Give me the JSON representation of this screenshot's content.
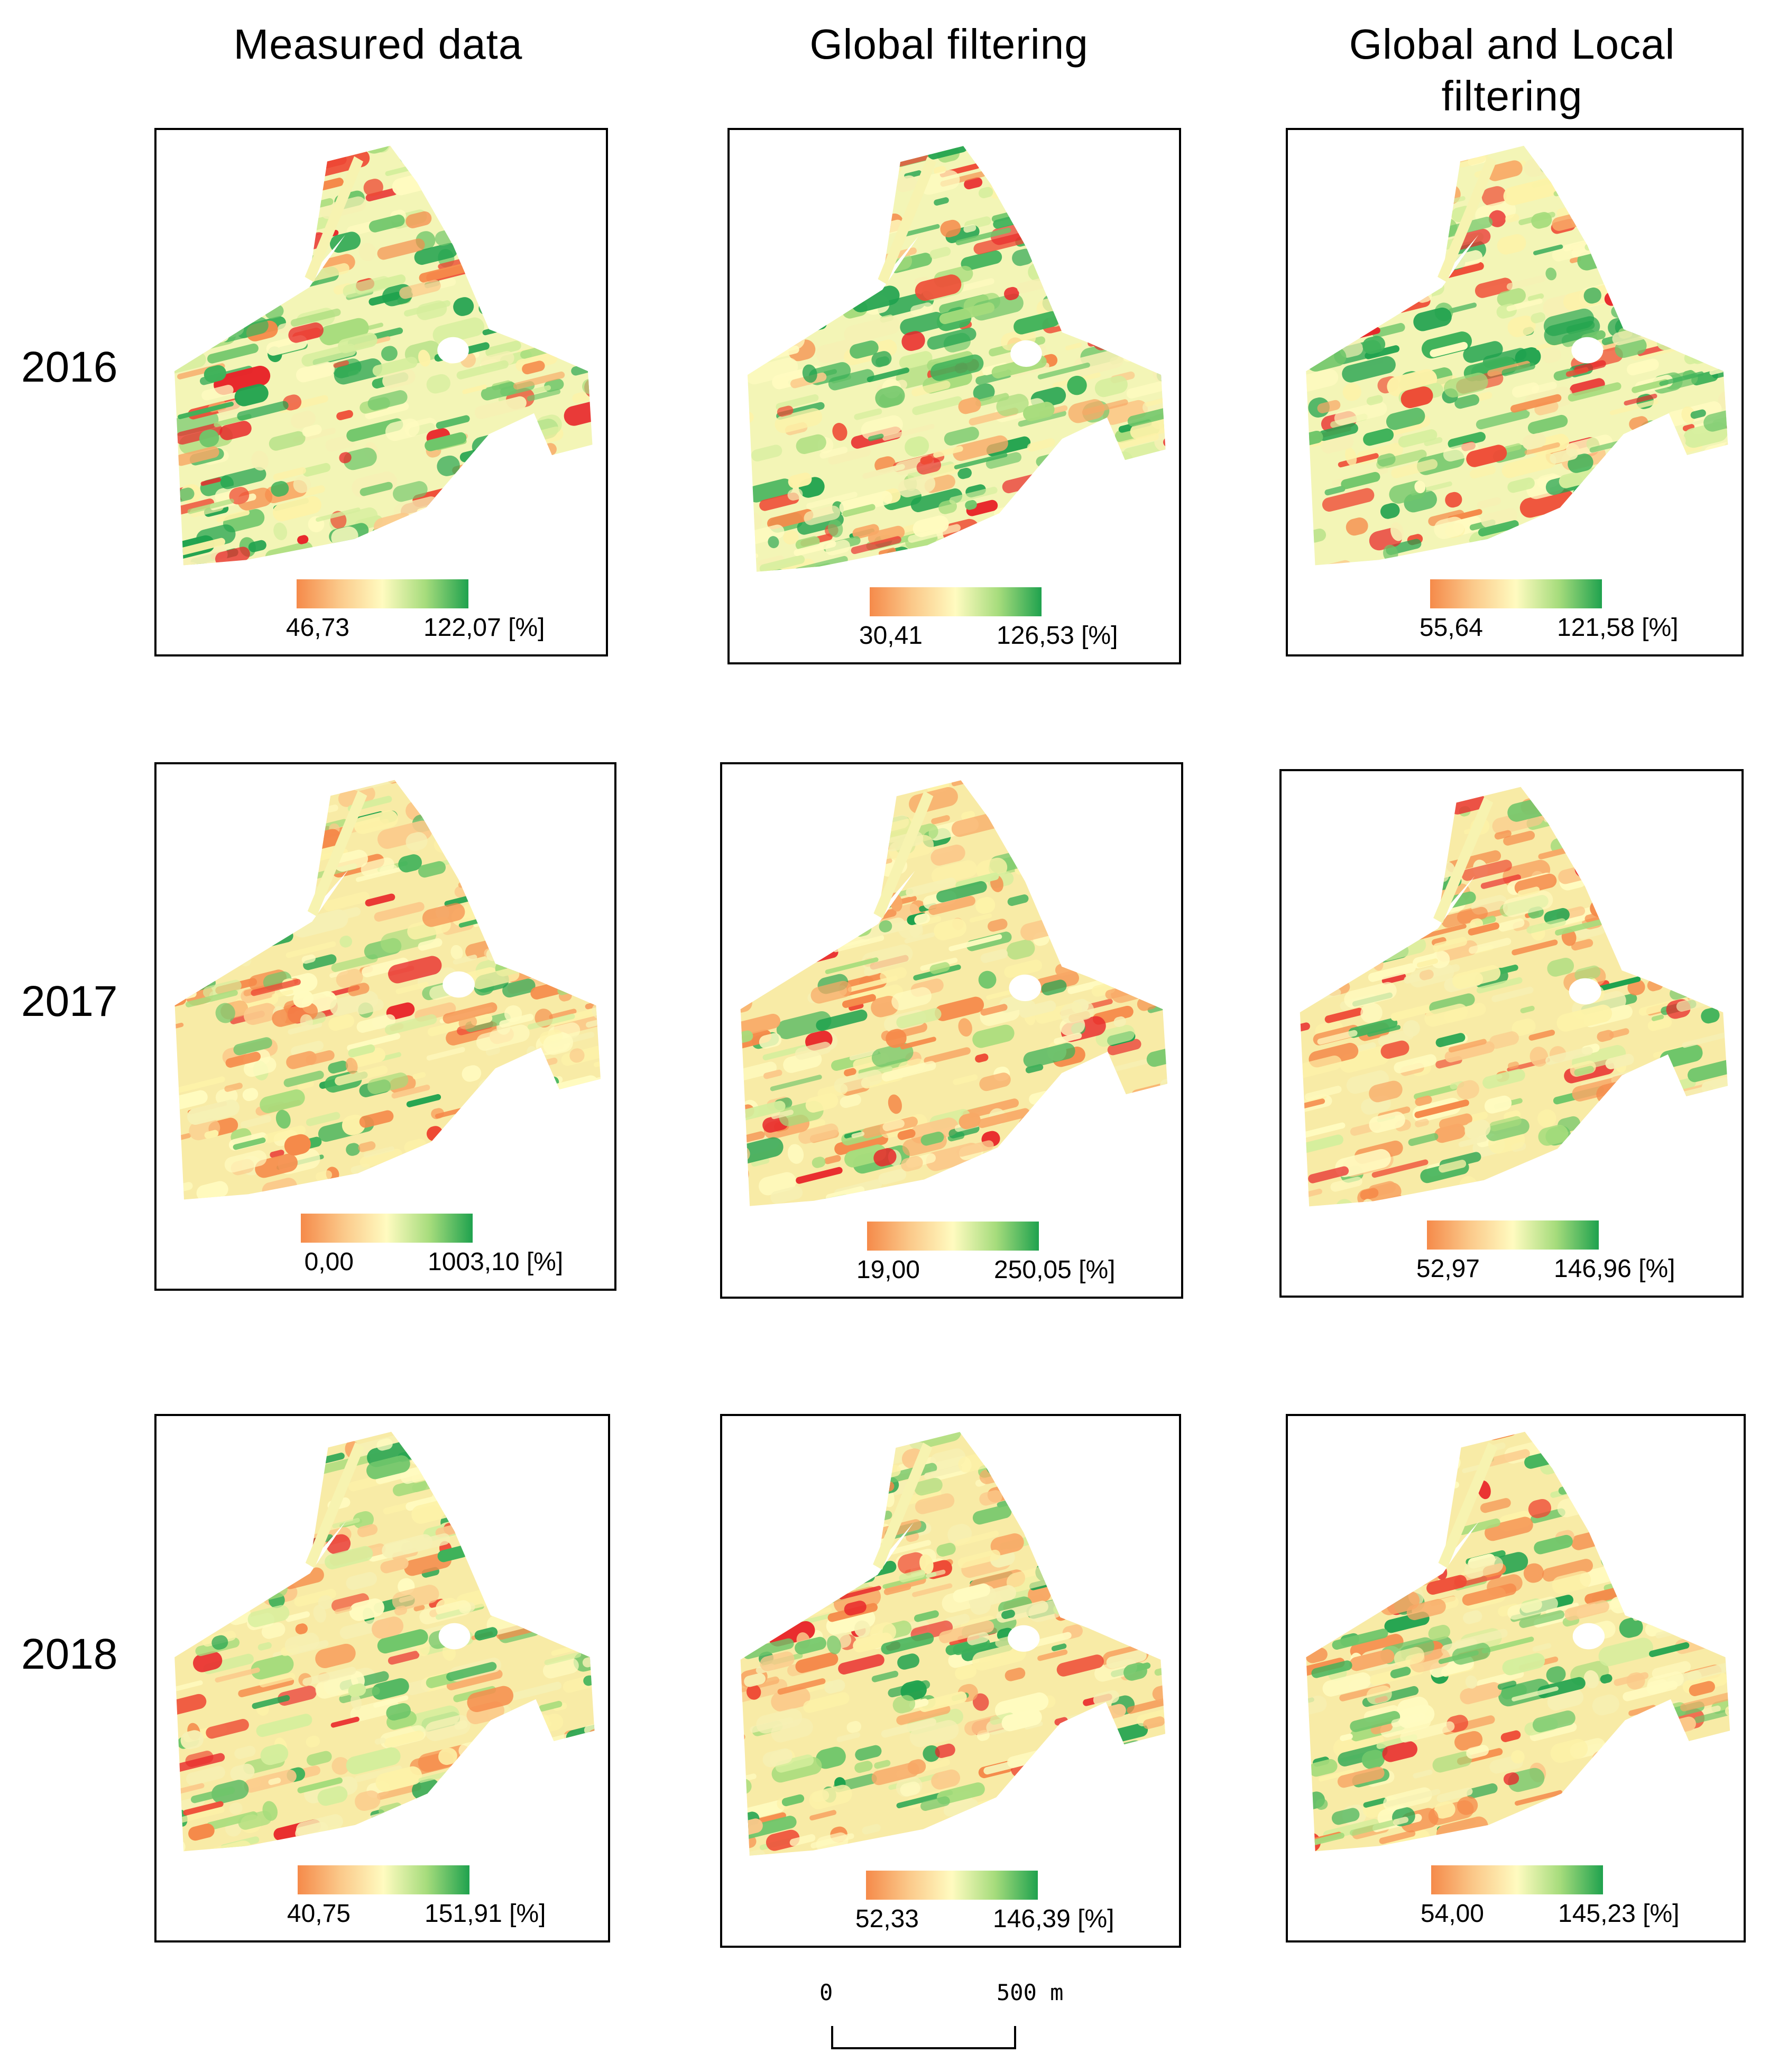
{
  "columns": [
    "Measured data",
    "Global filtering",
    "Global and Local filtering"
  ],
  "years": [
    "2016",
    "2017",
    "2018"
  ],
  "legend_colors": {
    "low": "#f58a4a",
    "mid": "#fffbc0",
    "high": "#1fa24e",
    "red": "#e8262a"
  },
  "panels": [
    {
      "year": "2016",
      "column": "Measured data",
      "min": "46,73",
      "max": "122,07 [%]"
    },
    {
      "year": "2016",
      "column": "Global filtering",
      "min": "30,41",
      "max": "126,53 [%]"
    },
    {
      "year": "2016",
      "column": "Global and Local filtering",
      "min": "55,64",
      "max": "121,58 [%]"
    },
    {
      "year": "2017",
      "column": "Measured data",
      "min": "0,00",
      "max": "1003,10 [%]"
    },
    {
      "year": "2017",
      "column": "Global filtering",
      "min": "19,00",
      "max": "250,05 [%]"
    },
    {
      "year": "2017",
      "column": "Global and Local filtering",
      "min": "52,97",
      "max": "146,96 [%]"
    },
    {
      "year": "2018",
      "column": "Measured data",
      "min": "40,75",
      "max": "151,91 [%]"
    },
    {
      "year": "2018",
      "column": "Global filtering",
      "min": "52,33",
      "max": "146,39 [%]"
    },
    {
      "year": "2018",
      "column": "Global and Local filtering",
      "min": "54,00",
      "max": "145,23 [%]"
    }
  ],
  "scalebar": {
    "start": "0",
    "end": "500 m"
  }
}
